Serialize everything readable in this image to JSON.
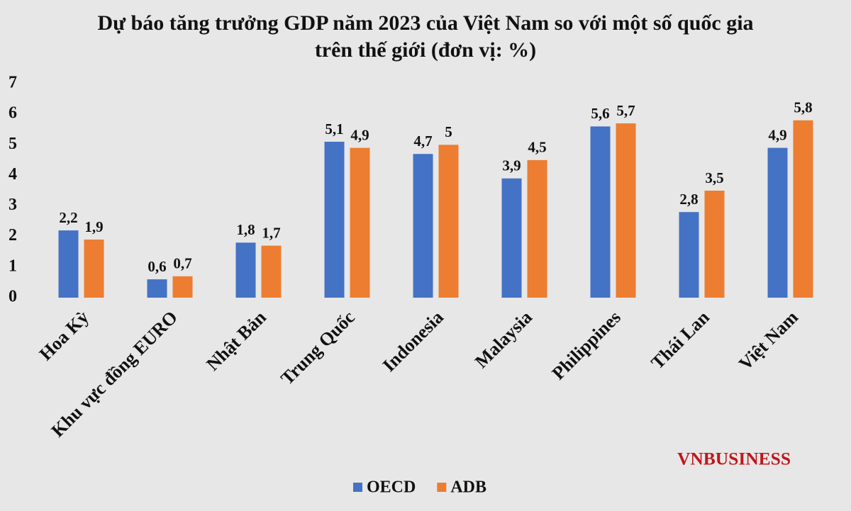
{
  "chart_data": {
    "type": "bar",
    "title": "Dự báo tăng trưởng GDP năm 2023 của Việt Nam so với một số quốc gia trên thế giới (đơn vị: %)",
    "categories": [
      "Hoa Kỳ",
      "Khu vực đồng EURO",
      "Nhật Bản",
      "Trung Quốc",
      "Indonesia",
      "Malaysia",
      "Philippines",
      "Thái Lan",
      "Việt Nam"
    ],
    "series": [
      {
        "name": "OECD",
        "color": "#4472c4",
        "values": [
          2.2,
          0.6,
          1.8,
          5.1,
          4.7,
          3.9,
          5.6,
          2.8,
          4.9
        ],
        "value_labels": [
          "2,2",
          "0,6",
          "1,8",
          "5,1",
          "4,7",
          "3,9",
          "5,6",
          "2,8",
          "4,9"
        ]
      },
      {
        "name": "ADB",
        "color": "#ed7d31",
        "values": [
          1.9,
          0.7,
          1.7,
          4.9,
          5,
          4.5,
          5.7,
          3.5,
          5.8
        ],
        "value_labels": [
          "1,9",
          "0,7",
          "1,7",
          "4,9",
          "5",
          "4,5",
          "5,7",
          "3,5",
          "5,8"
        ]
      }
    ],
    "ylim": [
      0,
      7
    ],
    "yticks": [
      0,
      1,
      2,
      3,
      4,
      5,
      6,
      7
    ],
    "grid": false,
    "legend": "bottom",
    "watermark": "VNBUSINESS"
  }
}
